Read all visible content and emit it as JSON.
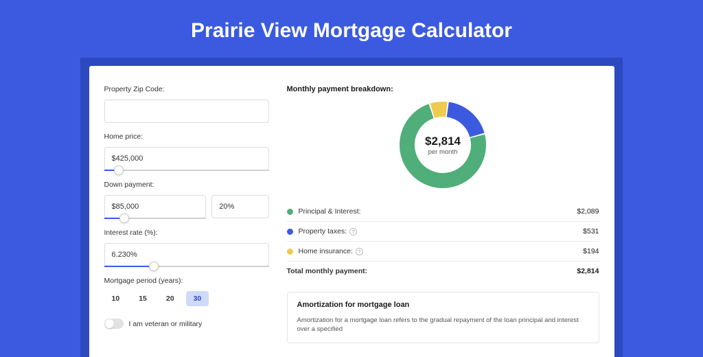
{
  "title": "Prairie View Mortgage Calculator",
  "colors": {
    "page_bg": "#3b5ae0",
    "band_bg": "#2d49bf",
    "principal": "#4fae79",
    "taxes": "#3b5ae0",
    "insurance": "#eecb4f"
  },
  "form": {
    "zip": {
      "label": "Property Zip Code:",
      "value": ""
    },
    "price": {
      "label": "Home price:",
      "value": "$425,000",
      "slider_pct": 9
    },
    "down": {
      "label": "Down payment:",
      "amount": "$85,000",
      "percent": "20%",
      "slider_pct": 20
    },
    "rate": {
      "label": "Interest rate (%):",
      "value": "6.230%",
      "slider_pct": 30
    },
    "period": {
      "label": "Mortgage period (years):",
      "options": [
        "10",
        "15",
        "20",
        "30"
      ],
      "selected": "30"
    },
    "veteran": {
      "label": "I am veteran or military",
      "on": false
    }
  },
  "breakdown": {
    "title": "Monthly payment breakdown:",
    "center_amount": "$2,814",
    "center_sub": "per month",
    "items": [
      {
        "label": "Principal & Interest:",
        "value": "$2,089",
        "color": "#4fae79",
        "info": false,
        "pct": 74.2
      },
      {
        "label": "Property taxes:",
        "value": "$531",
        "color": "#3b5ae0",
        "info": true,
        "pct": 18.9
      },
      {
        "label": "Home insurance:",
        "value": "$194",
        "color": "#eecb4f",
        "info": true,
        "pct": 6.9
      }
    ],
    "total": {
      "label": "Total monthly payment:",
      "value": "$2,814"
    },
    "donut": {
      "radius": 52,
      "stroke": 22,
      "segments": [
        {
          "color": "#eecb4f",
          "start": -18,
          "sweep": 25
        },
        {
          "color": "#3b5ae0",
          "start": 7,
          "sweep": 68
        },
        {
          "color": "#4fae79",
          "start": 75,
          "sweep": 267
        }
      ]
    }
  },
  "amortization": {
    "title": "Amortization for mortgage loan",
    "text": "Amortization for a mortgage loan refers to the gradual repayment of the loan principal and interest over a specified"
  }
}
